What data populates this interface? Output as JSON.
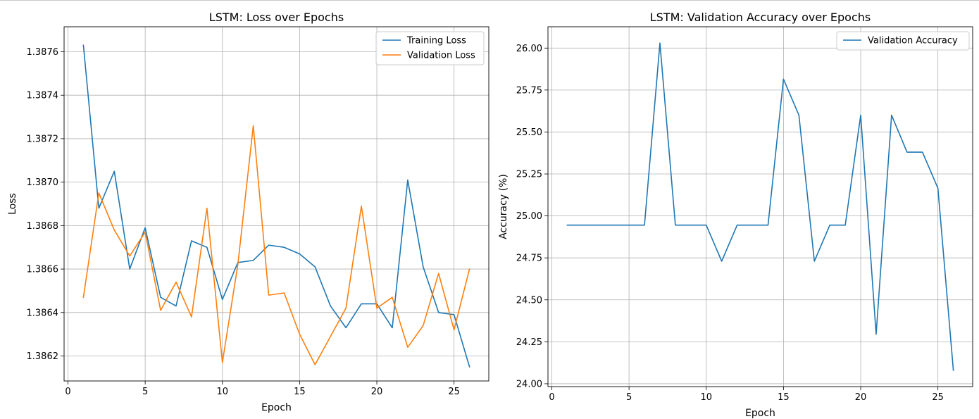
{
  "chart_data": [
    {
      "type": "line",
      "title": "LSTM: Loss over Epochs",
      "xlabel": "Epoch",
      "ylabel": "Loss",
      "xlim": [
        -0.25,
        27.25
      ],
      "ylim": [
        1.386085,
        1.387715
      ],
      "xticks": [
        0,
        5,
        10,
        15,
        20,
        25
      ],
      "yticks": [
        1.3862,
        1.3864,
        1.3866,
        1.3868,
        1.387,
        1.3872,
        1.3874,
        1.3876
      ],
      "ytick_labels": [
        "1.3862",
        "1.3864",
        "1.3866",
        "1.3868",
        "1.3870",
        "1.3872",
        "1.3874",
        "1.3876"
      ],
      "grid": true,
      "legend_position": "upper right",
      "x": [
        1,
        2,
        3,
        4,
        5,
        6,
        7,
        8,
        9,
        10,
        11,
        12,
        13,
        14,
        15,
        16,
        17,
        18,
        19,
        20,
        21,
        22,
        23,
        24,
        25,
        26
      ],
      "series": [
        {
          "name": "Training Loss",
          "color": "#1f77b4",
          "values": [
            1.38763,
            1.38688,
            1.38705,
            1.3866,
            1.38679,
            1.38647,
            1.38643,
            1.38673,
            1.3867,
            1.38646,
            1.38663,
            1.38664,
            1.38671,
            1.3867,
            1.38667,
            1.38661,
            1.38643,
            1.38633,
            1.38644,
            1.38644,
            1.38633,
            1.38701,
            1.38661,
            1.3864,
            1.38639,
            1.38615
          ]
        },
        {
          "name": "Validation Loss",
          "color": "#ff7f0e",
          "values": [
            1.38647,
            1.38695,
            1.38678,
            1.38666,
            1.38677,
            1.38641,
            1.38654,
            1.38638,
            1.38688,
            1.38617,
            1.38662,
            1.38726,
            1.38648,
            1.38649,
            1.3863,
            1.38616,
            1.38629,
            1.38642,
            1.38689,
            1.38642,
            1.38647,
            1.38624,
            1.38634,
            1.38658,
            1.38632,
            1.3866
          ]
        }
      ]
    },
    {
      "type": "line",
      "title": "LSTM: Validation Accuracy over Epochs",
      "xlabel": "Epoch",
      "ylabel": "Accuracy (%)",
      "xlim": [
        -0.25,
        27.25
      ],
      "ylim": [
        23.983,
        26.127
      ],
      "xticks": [
        0,
        5,
        10,
        15,
        20,
        25
      ],
      "yticks": [
        24.0,
        24.25,
        24.5,
        24.75,
        25.0,
        25.25,
        25.5,
        25.75,
        26.0
      ],
      "ytick_labels": [
        "24.00",
        "24.25",
        "24.50",
        "24.75",
        "25.00",
        "25.25",
        "25.50",
        "25.75",
        "26.00"
      ],
      "grid": true,
      "legend_position": "upper right",
      "x": [
        1,
        2,
        3,
        4,
        5,
        6,
        7,
        8,
        9,
        10,
        11,
        12,
        13,
        14,
        15,
        16,
        17,
        18,
        19,
        20,
        21,
        22,
        23,
        24,
        25,
        26
      ],
      "series": [
        {
          "name": "Validation Accuracy",
          "color": "#1f77b4",
          "values": [
            24.945,
            24.945,
            24.945,
            24.945,
            24.945,
            24.945,
            26.03,
            24.945,
            24.945,
            24.945,
            24.73,
            24.945,
            24.945,
            24.945,
            25.815,
            25.6,
            24.73,
            24.945,
            24.945,
            25.6,
            24.295,
            25.6,
            25.38,
            25.38,
            25.165,
            24.08
          ]
        }
      ]
    }
  ]
}
